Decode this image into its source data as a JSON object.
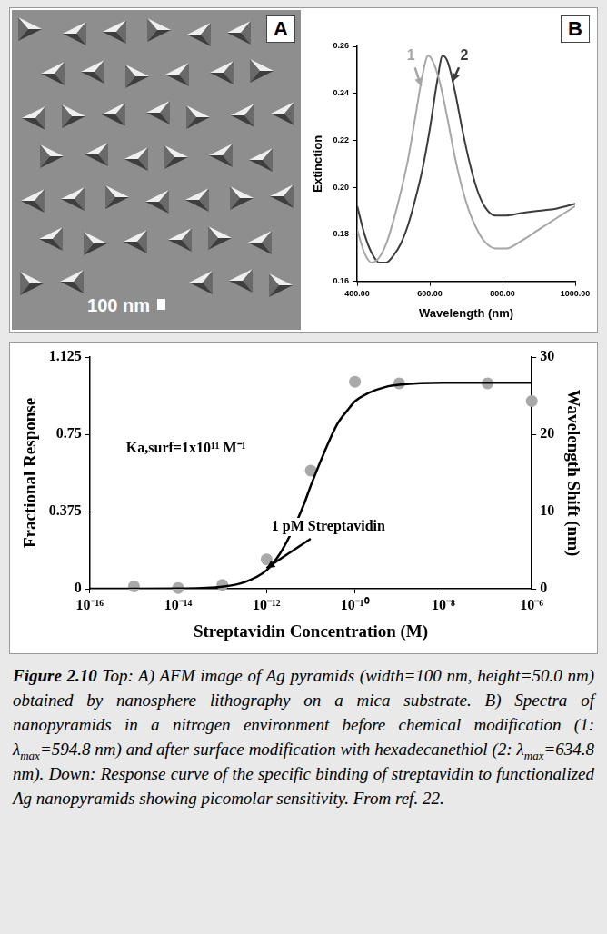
{
  "panel_a": {
    "label": "A",
    "scale_bar": "100 nm"
  },
  "chart_data": [
    {
      "type": "line",
      "panel": "B",
      "x_label": "Wavelength (nm)",
      "y_label": "Extinction",
      "xlim": [
        400,
        1000
      ],
      "xticks": [
        {
          "value": 400,
          "label": "400.00"
        },
        {
          "value": 600,
          "label": "600.00"
        },
        {
          "value": 800,
          "label": "800.00"
        },
        {
          "value": 1000,
          "label": "1000.00"
        }
      ],
      "ylim": [
        0.16,
        0.26
      ],
      "yticks": [
        0.16,
        0.18,
        {
          "value": 0.2,
          "label": "0.20"
        },
        0.22,
        0.24,
        0.26
      ],
      "grid": false,
      "series": [
        {
          "name": "1",
          "color": "#a6a6a6",
          "x": [
            400,
            420,
            440,
            460,
            480,
            500,
            520,
            540,
            560,
            580,
            595,
            610,
            630,
            650,
            670,
            690,
            710,
            730,
            750,
            780,
            810,
            850,
            900,
            950,
            1000
          ],
          "values": [
            0.182,
            0.172,
            0.168,
            0.17,
            0.176,
            0.186,
            0.198,
            0.212,
            0.23,
            0.248,
            0.256,
            0.253,
            0.243,
            0.228,
            0.212,
            0.199,
            0.189,
            0.182,
            0.177,
            0.174,
            0.174,
            0.177,
            0.182,
            0.187,
            0.192
          ]
        },
        {
          "name": "2",
          "color": "#3c3c3c",
          "x": [
            400,
            420,
            440,
            460,
            480,
            500,
            520,
            540,
            560,
            580,
            600,
            620,
            635,
            650,
            670,
            690,
            710,
            730,
            750,
            780,
            810,
            850,
            900,
            950,
            1000
          ],
          "values": [
            0.192,
            0.18,
            0.172,
            0.168,
            0.168,
            0.171,
            0.176,
            0.184,
            0.195,
            0.208,
            0.225,
            0.245,
            0.256,
            0.253,
            0.24,
            0.224,
            0.21,
            0.199,
            0.192,
            0.188,
            0.188,
            0.189,
            0.19,
            0.191,
            0.193
          ]
        }
      ],
      "annotations": [
        {
          "text": "1",
          "x": 548,
          "y": 0.256,
          "arrow": [
            576,
            0.243
          ],
          "color": "#a6a6a6"
        },
        {
          "text": "2",
          "x": 695,
          "y": 0.256,
          "arrow": [
            662,
            0.245
          ],
          "color": "#3c3c3c"
        }
      ]
    },
    {
      "type": "line",
      "x_label": "Streptavidin Concentration (M)",
      "y_label": "Fractional Response",
      "y2_label": "Wavelength Shift (nm)",
      "log": "x",
      "xlim": [
        1e-16,
        1e-06
      ],
      "xticks": [
        {
          "value": 1e-16,
          "label": "10⁻¹⁶"
        },
        {
          "value": 1e-14,
          "label": "10⁻¹⁴"
        },
        {
          "value": 1e-12,
          "label": "10⁻¹²"
        },
        {
          "value": 1e-10,
          "label": "10⁻¹⁰"
        },
        {
          "value": 1e-08,
          "label": "10⁻⁸"
        },
        {
          "value": 1e-06,
          "label": "10⁻⁶"
        }
      ],
      "ylim": [
        0,
        1.125
      ],
      "yticks": [
        0,
        0.375,
        0.75,
        1.125
      ],
      "y2lim": [
        0,
        30
      ],
      "y2ticks": [
        0,
        10,
        20,
        30
      ],
      "grid": false,
      "series": [
        {
          "type": "line",
          "color": "#000000",
          "x": [
            1e-16,
            1e-15,
            1e-14,
            1e-13,
            3e-13,
            1e-12,
            2e-12,
            4e-12,
            7e-12,
            1e-11,
            2e-11,
            4e-11,
            7e-11,
            1e-10,
            2e-10,
            5e-10,
            1e-09,
            1e-08,
            1e-07,
            1e-06
          ],
          "values": [
            0,
            0,
            0.001,
            0.01,
            0.03,
            0.09,
            0.17,
            0.29,
            0.41,
            0.5,
            0.66,
            0.8,
            0.87,
            0.91,
            0.95,
            0.98,
            0.99,
            1.0,
            1.0,
            1.0
          ]
        },
        {
          "type": "scatter",
          "axis": "y2",
          "marker": "circle",
          "color": "#a9a9a9",
          "x": [
            1e-15,
            1e-14,
            1e-13,
            1e-12,
            1e-11,
            1e-10,
            1e-09,
            1e-07,
            1e-06
          ],
          "values": [
            0.3,
            0.1,
            0.5,
            3.8,
            15.3,
            26.8,
            26.6,
            26.6,
            24.3
          ]
        }
      ],
      "annotations": [
        {
          "text": "Ka,surf=1x10¹¹ M⁻¹",
          "x": 1.5e-14,
          "y": 0.68
        },
        {
          "text": "1 pM Streptavidin",
          "x": 2.5e-11,
          "y": 0.3,
          "arrow": [
            1e-12,
            0.1
          ]
        }
      ]
    }
  ],
  "caption": {
    "label": "Figure 2.10",
    "parts": [
      "Top: A) AFM image of Ag pyramids (width=100 nm, height=50.0 nm) obtained by nanosphere lithography on a mica substrate. B) Spectra of nanopyramids in a nitrogen environment before chemical modification (1: λ",
      "max",
      "=594.8 nm) and after surface modification with hexadecanethiol (2: λ",
      "max",
      "=634.8 nm). Down: Response curve of the specific binding of streptavidin to functionalized Ag nanopyramids showing picomolar sensitivity. From ref. 22."
    ]
  }
}
